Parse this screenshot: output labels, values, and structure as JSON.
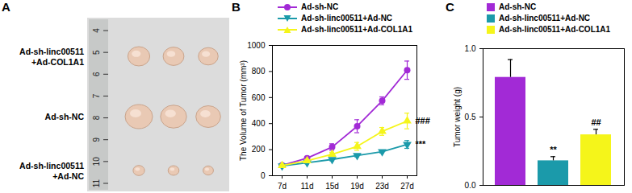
{
  "chart_data": [
    {
      "type": "image",
      "panel": "A",
      "rows": [
        {
          "label": [
            "Ad-sh-linc00511",
            "+Ad-COL1A1"
          ]
        },
        {
          "label": [
            "Ad-sh-NC"
          ]
        },
        {
          "label": [
            "Ad-sh-linc00511",
            "+Ad-NC"
          ]
        }
      ],
      "ruler_labels": [
        "4",
        "5",
        "6",
        "7",
        "8",
        "9",
        "10",
        "11"
      ]
    },
    {
      "type": "line",
      "panel": "B",
      "x": [
        "7d",
        "11d",
        "15d",
        "19d",
        "23d",
        "27d"
      ],
      "ylabel": "The Volume of Tumor (mm³)",
      "ylim": [
        0,
        1000
      ],
      "yticks": [
        0,
        200,
        400,
        600,
        800,
        1000
      ],
      "legend": "top-left",
      "series": [
        {
          "name": "Ad-sh-NC",
          "color": "#a22ad6",
          "marker": "circle",
          "values": [
            80,
            135,
            220,
            380,
            575,
            810
          ],
          "errors": [
            8,
            10,
            25,
            50,
            30,
            70
          ]
        },
        {
          "name": "Ad-sh-linc00511+Ad-NC",
          "color": "#1b9aaa",
          "marker": "triangle-down",
          "values": [
            75,
            100,
            125,
            155,
            185,
            240
          ],
          "errors": [
            5,
            8,
            10,
            10,
            10,
            30
          ],
          "annotation": "***"
        },
        {
          "name": "Ad-sh-linc00511+Ad-COL1A1",
          "color": "#f5f51a",
          "marker": "triangle",
          "values": [
            78,
            115,
            165,
            225,
            340,
            420
          ],
          "errors": [
            5,
            10,
            15,
            30,
            30,
            60
          ],
          "annotation": "###"
        }
      ]
    },
    {
      "type": "bar",
      "panel": "C",
      "categories": [
        "Ad-sh-NC",
        "Ad-sh-linc00511+Ad-NC",
        "Ad-sh-linc00511+Ad-COL1A1"
      ],
      "values": [
        0.79,
        0.18,
        0.37
      ],
      "errors": [
        0.13,
        0.03,
        0.04
      ],
      "colors": [
        "#a22ad6",
        "#1b9aaa",
        "#f5f51a"
      ],
      "annotations": [
        null,
        "**",
        "##"
      ],
      "ylabel": "Tumor weight (g)",
      "ylim": [
        0,
        1
      ],
      "yticks": [
        {
          "value": 0,
          "label": "0.0"
        },
        {
          "value": 0.5,
          "label": "0.5"
        },
        {
          "value": 1,
          "label": "1.0"
        }
      ],
      "legend": "top-left",
      "tick_labels": "y"
    }
  ]
}
